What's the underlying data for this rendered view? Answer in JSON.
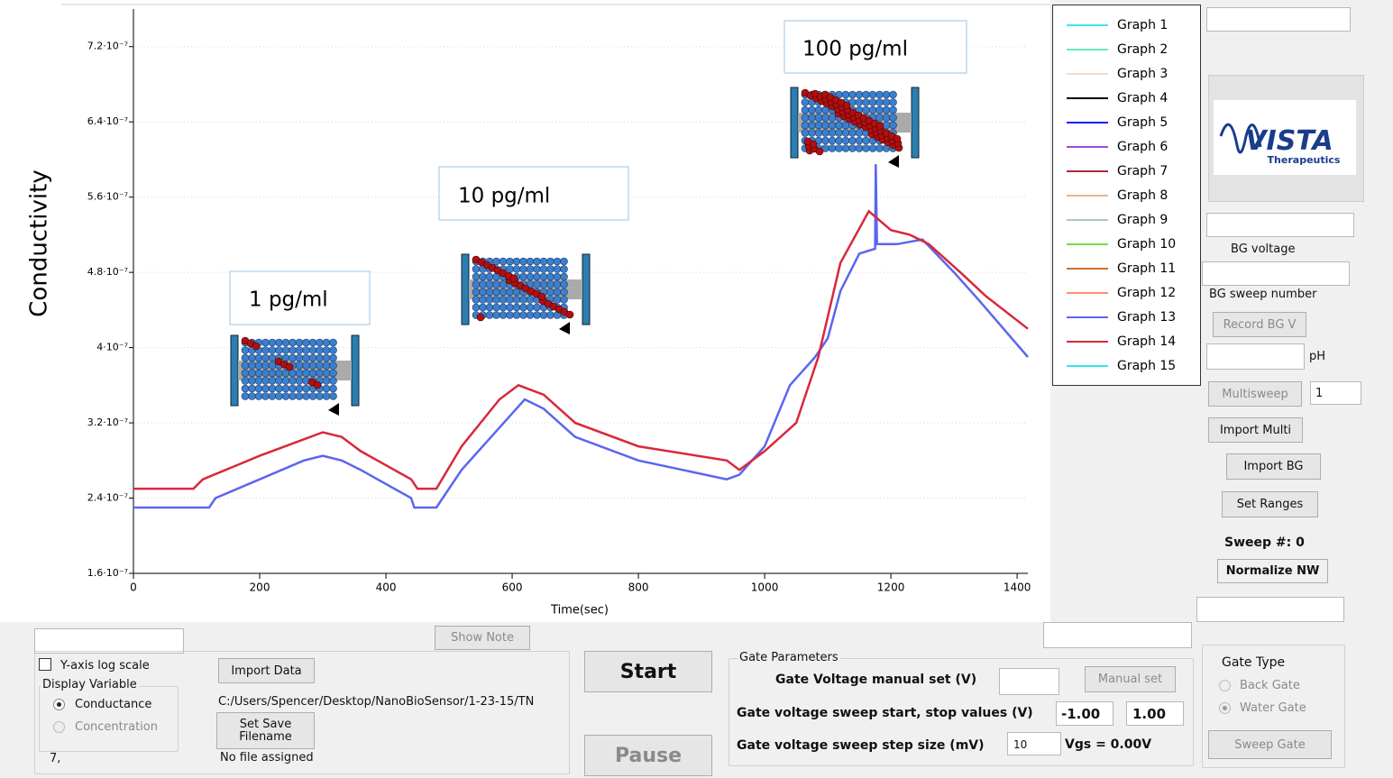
{
  "chart_data": {
    "type": "line",
    "y_label": "Conductivity",
    "x_label": "Time(sec)",
    "xlim": [
      0,
      1417
    ],
    "xticks": [
      0,
      200,
      400,
      600,
      800,
      1000,
      1200,
      1400
    ],
    "ylim": [
      1.6e-07,
      7.6e-07
    ],
    "yticks": [
      {
        "value": 1.6e-07,
        "label": "1.6·10⁻⁷"
      },
      {
        "value": 2.4e-07,
        "label": "2.4·10⁻⁷"
      },
      {
        "value": 3.2e-07,
        "label": "3.2·10⁻⁷"
      },
      {
        "value": 4e-07,
        "label": "4·10⁻⁷"
      },
      {
        "value": 4.8e-07,
        "label": "4.8·10⁻⁷"
      },
      {
        "value": 5.6e-07,
        "label": "5.6·10⁻⁷"
      },
      {
        "value": 6.4e-07,
        "label": "6.4·10⁻⁷"
      },
      {
        "value": 7.2e-07,
        "label": "7.2·10⁻⁷"
      }
    ],
    "grid": true,
    "annotations": [
      "1 pg/ml",
      "10 pg/ml",
      "100 pg/ml"
    ],
    "series": [
      {
        "name": "Graph 1",
        "color": "#3ee6f2",
        "x": [],
        "values": []
      },
      {
        "name": "Graph 2",
        "color": "#66e8c6",
        "x": [],
        "values": []
      },
      {
        "name": "Graph 3",
        "color": "#f6dcc6",
        "x": [],
        "values": []
      },
      {
        "name": "Graph 4",
        "color": "#000000",
        "x": [],
        "values": []
      },
      {
        "name": "Graph 5",
        "color": "#1a1aff",
        "x": [],
        "values": []
      },
      {
        "name": "Graph 6",
        "color": "#9a4ee0",
        "x": [],
        "values": []
      },
      {
        "name": "Graph 7",
        "color": "#b02838",
        "x": [],
        "values": []
      },
      {
        "name": "Graph 8",
        "color": "#e2b692",
        "x": [],
        "values": []
      },
      {
        "name": "Graph 9",
        "color": "#a8c8c8",
        "x": [],
        "values": []
      },
      {
        "name": "Graph 10",
        "color": "#70e040",
        "x": [],
        "values": []
      },
      {
        "name": "Graph 11",
        "color": "#d07030",
        "x": [],
        "values": []
      },
      {
        "name": "Graph 12",
        "color": "#ff9070",
        "x": [],
        "values": []
      },
      {
        "name": "Graph 13",
        "color": "#5a66f0",
        "x": [
          0,
          120,
          130,
          200,
          270,
          300,
          330,
          360,
          440,
          445,
          480,
          520,
          580,
          620,
          650,
          700,
          800,
          940,
          960,
          1000,
          1040,
          1060,
          1080,
          1100,
          1120,
          1150,
          1175,
          1176,
          1178,
          1210,
          1250,
          1300,
          1340,
          1417
        ],
        "values": [
          2.3e-07,
          2.3e-07,
          2.4e-07,
          2.6e-07,
          2.8e-07,
          2.85e-07,
          2.8e-07,
          2.7e-07,
          2.4e-07,
          2.3e-07,
          2.3e-07,
          2.7e-07,
          3.15e-07,
          3.45e-07,
          3.35e-07,
          3.05e-07,
          2.8e-07,
          2.6e-07,
          2.65e-07,
          2.95e-07,
          3.6e-07,
          3.75e-07,
          3.9e-07,
          4.1e-07,
          4.6e-07,
          5e-07,
          5.05e-07,
          5.95e-07,
          5.1e-07,
          5.1e-07,
          5.15e-07,
          4.8e-07,
          4.5e-07,
          3.9e-07
        ]
      },
      {
        "name": "Graph 14",
        "color": "#d8283c",
        "x": [
          0,
          95,
          110,
          200,
          260,
          300,
          330,
          360,
          440,
          450,
          480,
          520,
          580,
          610,
          650,
          700,
          800,
          940,
          960,
          1000,
          1050,
          1085,
          1120,
          1165,
          1200,
          1230,
          1260,
          1310,
          1350,
          1417
        ],
        "values": [
          2.5e-07,
          2.5e-07,
          2.6e-07,
          2.85e-07,
          3e-07,
          3.1e-07,
          3.05e-07,
          2.9e-07,
          2.6e-07,
          2.5e-07,
          2.5e-07,
          2.95e-07,
          3.45e-07,
          3.6e-07,
          3.5e-07,
          3.2e-07,
          2.95e-07,
          2.8e-07,
          2.7e-07,
          2.9e-07,
          3.2e-07,
          3.9e-07,
          4.9e-07,
          5.45e-07,
          5.25e-07,
          5.2e-07,
          5.1e-07,
          4.8e-07,
          4.55e-07,
          4.2e-07
        ]
      },
      {
        "name": "Graph 15",
        "color": "#30e8f2",
        "x": [],
        "values": []
      }
    ]
  },
  "logo": {
    "name": "VISTA",
    "tagline": "Therapeutics"
  },
  "right_panel": {
    "bg_voltage": "BG voltage",
    "bg_sweep_number": "BG sweep number",
    "record_bg_v": "Record BG V",
    "ph": "pH",
    "multisweep": "Multisweep",
    "multisweep_count": "1",
    "import_multi": "Import Multi",
    "import_bg": "Import BG",
    "set_ranges": "Set Ranges",
    "sweep_number": "Sweep #: 0",
    "normalize_nw": "Normalize NW"
  },
  "bottom_panel": {
    "show_note": "Show Note",
    "y_log_scale": "Y-axis log scale",
    "display_variable": "Display Variable",
    "conductance": "Conductance",
    "concentration": "Concentration",
    "status": "7,",
    "import_data": "Import Data",
    "path": "C:/Users/Spencer/Desktop/NanoBioSensor/1-23-15/TN",
    "set_save_filename": "Set Save Filename",
    "no_file": "No file assigned",
    "start": "Start",
    "pause": "Pause"
  },
  "gate_parameters": {
    "title": "Gate Parameters",
    "manual_label": "Gate Voltage manual set (V)",
    "manual_button": "Manual set",
    "sweep_label": "Gate voltage sweep start, stop values (V)",
    "sweep_start": "-1.00",
    "sweep_stop": "1.00",
    "step_label": "Gate voltage sweep step size (mV)",
    "step_value": "10",
    "vgs": "Vgs = 0.00V"
  },
  "gate_type": {
    "title": "Gate Type",
    "back_gate": "Back Gate",
    "water_gate": "Water Gate",
    "sweep_gate": "Sweep Gate"
  }
}
